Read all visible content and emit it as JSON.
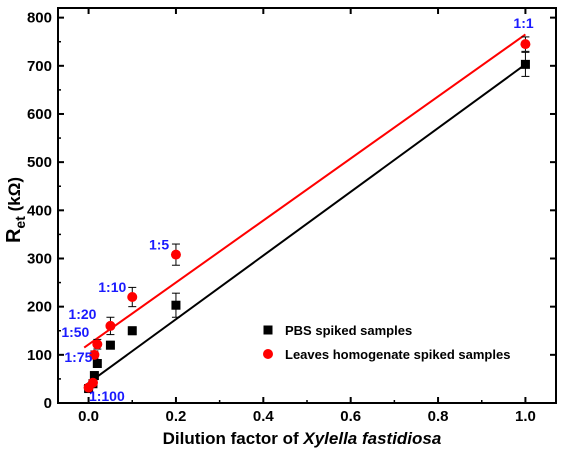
{
  "chart_data": {
    "type": "scatter",
    "xlabel_prefix": "Dilution factor of ",
    "xlabel_italic": "Xylella fastidiosa",
    "ylabel_main": "R",
    "ylabel_sub": "et",
    "ylabel_unit": " (kΩ)",
    "xlim": [
      -0.07,
      1.07
    ],
    "ylim": [
      0,
      820
    ],
    "xticks": [
      0.0,
      0.2,
      0.4,
      0.6,
      0.8,
      1.0
    ],
    "xtick_labels": [
      "0.0",
      "0.2",
      "0.4",
      "0.6",
      "0.8",
      "1.0"
    ],
    "yticks": [
      0,
      100,
      200,
      300,
      400,
      500,
      600,
      700,
      800
    ],
    "ytick_labels": [
      "0",
      "100",
      "200",
      "300",
      "400",
      "500",
      "600",
      "700",
      "800"
    ],
    "legend_position": "lower-right",
    "series": [
      {
        "name": "PBS spiked samples",
        "marker": "square",
        "color": "#000000",
        "x": [
          0.0,
          0.01,
          0.0133,
          0.02,
          0.05,
          0.1,
          0.2,
          1.0
        ],
        "y": [
          30,
          40,
          57,
          82,
          120,
          150,
          203,
          703
        ],
        "err": [
          3,
          3,
          4,
          5,
          8,
          8,
          25,
          25
        ],
        "fit": [
          [
            -0.01,
            35
          ],
          [
            1.0,
            703
          ]
        ]
      },
      {
        "name": "Leaves homogenate spiked samples",
        "marker": "circle",
        "color": "#ff0000",
        "x": [
          0.0,
          0.01,
          0.0133,
          0.02,
          0.05,
          0.1,
          0.2,
          1.0
        ],
        "y": [
          32,
          42,
          100,
          122,
          160,
          220,
          308,
          745
        ],
        "err": [
          3,
          3,
          8,
          10,
          18,
          20,
          22,
          15
        ],
        "fit": [
          [
            -0.01,
            115
          ],
          [
            1.0,
            765
          ]
        ]
      }
    ],
    "annotations": [
      {
        "text": "1:1",
        "x": 1.0,
        "y": 745
      },
      {
        "text": "1:5",
        "x": 0.2,
        "y": 308
      },
      {
        "text": "1:10",
        "x": 0.1,
        "y": 220
      },
      {
        "text": "1:20",
        "x": 0.05,
        "y": 160
      },
      {
        "text": "1:50",
        "x": 0.02,
        "y": 122
      },
      {
        "text": "1:75",
        "x": 0.0133,
        "y": 100
      },
      {
        "text": "1:100",
        "x": 0.01,
        "y": 42
      }
    ],
    "annotation_color": "#1a1aff"
  }
}
